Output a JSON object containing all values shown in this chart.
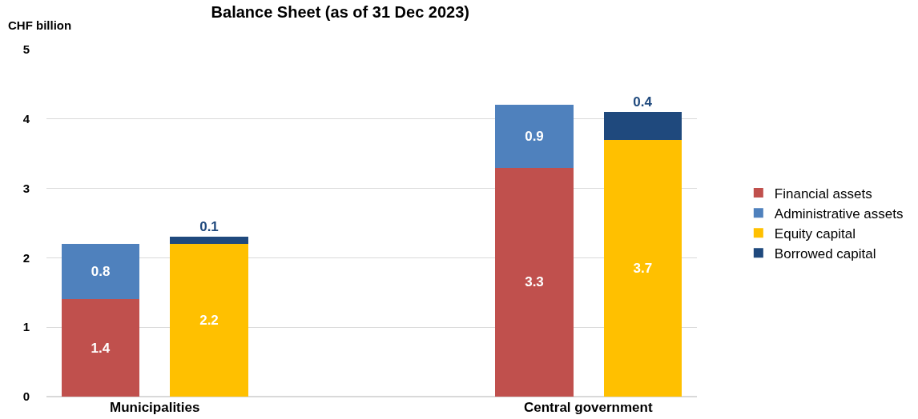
{
  "chart_data": {
    "type": "bar",
    "title": "Balance Sheet (as of 31 Dec 2023)",
    "ylabel": "CHF billion",
    "categories": [
      null,
      null,
      null,
      null
    ],
    "stacked": true,
    "series": [
      {
        "name": "Financial assets",
        "color": "#c0504d",
        "values": [
          1.4,
          null,
          3.3,
          null
        ]
      },
      {
        "name": "Administrative assets",
        "color": "#4f81bd",
        "values": [
          0.8,
          null,
          0.9,
          null
        ]
      },
      {
        "name": "Equity capital",
        "color": "#ffc000",
        "values": [
          null,
          2.2,
          null,
          3.7
        ]
      },
      {
        "name": "Borrowed capital",
        "color": "#1f497d",
        "values": [
          null,
          0.1,
          null,
          0.4
        ]
      }
    ],
    "annotations": [
      "Municipalities",
      "Central government"
    ],
    "ylim": [
      0,
      5
    ],
    "yticks": [
      0,
      1,
      2,
      3,
      4,
      5
    ],
    "grid": "y",
    "legend": "right",
    "data_labels": true
  }
}
